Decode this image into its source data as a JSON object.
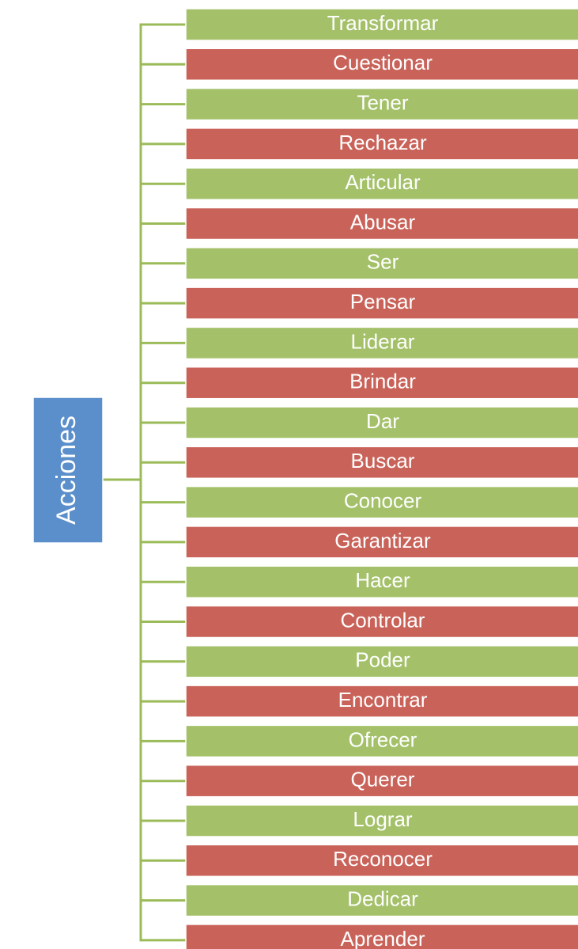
{
  "root": {
    "label": "Acciones",
    "color": "#5b8fcb"
  },
  "nodes": [
    {
      "label": "Transformar",
      "color": "#a4c16a"
    },
    {
      "label": "Cuestionar",
      "color": "#c9635a"
    },
    {
      "label": "Tener",
      "color": "#a4c16a"
    },
    {
      "label": "Rechazar",
      "color": "#c9635a"
    },
    {
      "label": "Articular",
      "color": "#a4c16a"
    },
    {
      "label": "Abusar",
      "color": "#c9635a"
    },
    {
      "label": "Ser",
      "color": "#a4c16a"
    },
    {
      "label": "Pensar",
      "color": "#c9635a"
    },
    {
      "label": "Liderar",
      "color": "#a4c16a"
    },
    {
      "label": "Brindar",
      "color": "#c9635a"
    },
    {
      "label": "Dar",
      "color": "#a4c16a"
    },
    {
      "label": "Buscar",
      "color": "#c9635a"
    },
    {
      "label": "Conocer",
      "color": "#a4c16a"
    },
    {
      "label": "Garantizar",
      "color": "#c9635a"
    },
    {
      "label": "Hacer",
      "color": "#a4c16a"
    },
    {
      "label": "Controlar",
      "color": "#c9635a"
    },
    {
      "label": "Poder",
      "color": "#a4c16a"
    },
    {
      "label": "Encontrar",
      "color": "#c9635a"
    },
    {
      "label": "Ofrecer",
      "color": "#a4c16a"
    },
    {
      "label": "Querer",
      "color": "#c9635a"
    },
    {
      "label": "Lograr",
      "color": "#a4c16a"
    },
    {
      "label": "Reconocer",
      "color": "#c9635a"
    },
    {
      "label": "Dedicar",
      "color": "#a4c16a"
    },
    {
      "label": "Aprender",
      "color": "#c9635a"
    }
  ]
}
